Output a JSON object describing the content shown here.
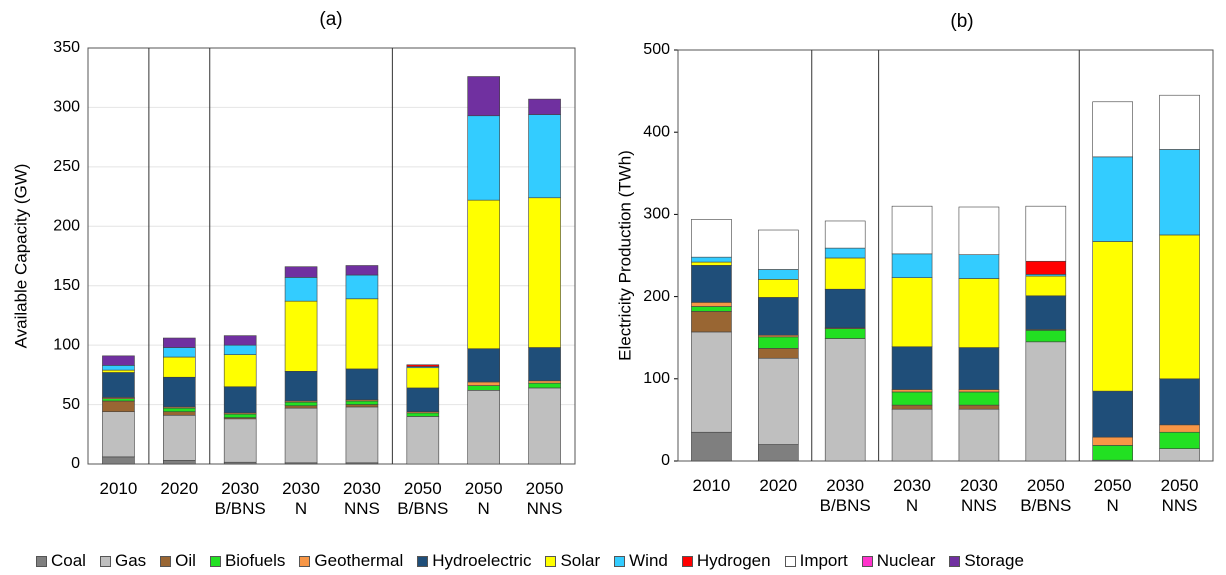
{
  "chart_data": [
    {
      "type": "stacked-bar",
      "title": "(a)",
      "y_label": "Available Capacity (GW)",
      "categories": [
        "2010",
        "2020",
        "2030\nB/BNS",
        "2030\nN",
        "2030\nNNS",
        "2050\nB/BNS",
        "2050\nN",
        "2050\nNNS"
      ],
      "ylim": [
        0,
        350
      ],
      "yticks": [
        0,
        50,
        100,
        150,
        200,
        250,
        300,
        350
      ],
      "grid": true,
      "series": [
        {
          "name": "Coal",
          "color": "#7f7f7f",
          "values": [
            6,
            3,
            1.5,
            1,
            1,
            0,
            0,
            0
          ]
        },
        {
          "name": "Gas",
          "color": "#bfbfbf",
          "values": [
            38,
            38,
            36.5,
            46,
            47,
            40,
            62,
            64
          ]
        },
        {
          "name": "Oil",
          "color": "#996633",
          "values": [
            9,
            3,
            1,
            2,
            2,
            0,
            0,
            0
          ]
        },
        {
          "name": "Biofuels",
          "color": "#22e022",
          "values": [
            2,
            3,
            3,
            3,
            3,
            3,
            4,
            4
          ]
        },
        {
          "name": "Geothermal",
          "color": "#f79646",
          "values": [
            1,
            1,
            1,
            1,
            1,
            1,
            3,
            2
          ]
        },
        {
          "name": "Hydroelectric",
          "color": "#1f4e79",
          "values": [
            21,
            25,
            22,
            25,
            26,
            20,
            28,
            28
          ]
        },
        {
          "name": "Solar",
          "color": "#ffff00",
          "values": [
            2,
            17,
            27,
            59,
            59,
            17,
            125,
            126
          ]
        },
        {
          "name": "Wind",
          "color": "#33ccff",
          "values": [
            4,
            8,
            8,
            20,
            20,
            1,
            71,
            70
          ]
        },
        {
          "name": "Hydrogen",
          "color": "#ff0000",
          "values": [
            0,
            0,
            0,
            0,
            0,
            1.5,
            0,
            0
          ]
        },
        {
          "name": "Import",
          "color": "#ffffff",
          "values": [
            0,
            0,
            0,
            0,
            0,
            0,
            0,
            0
          ]
        },
        {
          "name": "Nuclear",
          "color": "#ff33cc",
          "values": [
            0,
            0,
            0,
            0,
            0,
            0,
            0,
            0
          ]
        },
        {
          "name": "Storage",
          "color": "#7030a0",
          "values": [
            8,
            8,
            8,
            9,
            8,
            0,
            33,
            13
          ]
        }
      ]
    },
    {
      "type": "stacked-bar",
      "title": "(b)",
      "y_label": "Electricity Production (TWh)",
      "categories": [
        "2010",
        "2020",
        "2030\nB/BNS",
        "2030\nN",
        "2030\nNNS",
        "2050\nB/BNS",
        "2050\nN",
        "2050\nNNS"
      ],
      "ylim": [
        0,
        500
      ],
      "yticks": [
        0,
        100,
        200,
        300,
        400,
        500
      ],
      "grid": false,
      "series": [
        {
          "name": "Coal",
          "color": "#7f7f7f",
          "values": [
            35,
            20,
            0,
            0,
            0,
            0,
            0,
            0
          ]
        },
        {
          "name": "Gas",
          "color": "#bfbfbf",
          "values": [
            122,
            105,
            149,
            63,
            63,
            145,
            1,
            15
          ]
        },
        {
          "name": "Oil",
          "color": "#996633",
          "values": [
            25,
            12,
            0,
            5,
            5,
            0,
            0,
            0
          ]
        },
        {
          "name": "Biofuels",
          "color": "#22e022",
          "values": [
            6,
            14,
            12,
            16,
            16,
            14,
            18,
            20
          ]
        },
        {
          "name": "Geothermal",
          "color": "#f79646",
          "values": [
            5,
            2,
            1,
            3,
            3,
            1,
            10,
            9
          ]
        },
        {
          "name": "Hydroelectric",
          "color": "#1f4e79",
          "values": [
            45,
            46,
            47,
            52,
            51,
            41,
            56,
            56
          ]
        },
        {
          "name": "Solar",
          "color": "#ffff00",
          "values": [
            4,
            22,
            38,
            84,
            84,
            24,
            182,
            175
          ]
        },
        {
          "name": "Wind",
          "color": "#33ccff",
          "values": [
            6,
            12,
            12,
            29,
            29,
            2,
            103,
            104
          ]
        },
        {
          "name": "Hydrogen",
          "color": "#ff0000",
          "values": [
            0,
            0,
            0,
            0,
            0,
            16,
            0,
            0
          ]
        },
        {
          "name": "Import",
          "color": "#ffffff",
          "values": [
            46,
            48,
            33,
            58,
            58,
            67,
            67,
            66
          ]
        },
        {
          "name": "Nuclear",
          "color": "#ff33cc",
          "values": [
            0,
            0,
            0,
            0,
            0,
            0,
            0,
            0
          ]
        },
        {
          "name": "Storage",
          "color": "#7030a0",
          "values": [
            0,
            0,
            0,
            0,
            0,
            0,
            0,
            0
          ]
        }
      ]
    }
  ]
}
